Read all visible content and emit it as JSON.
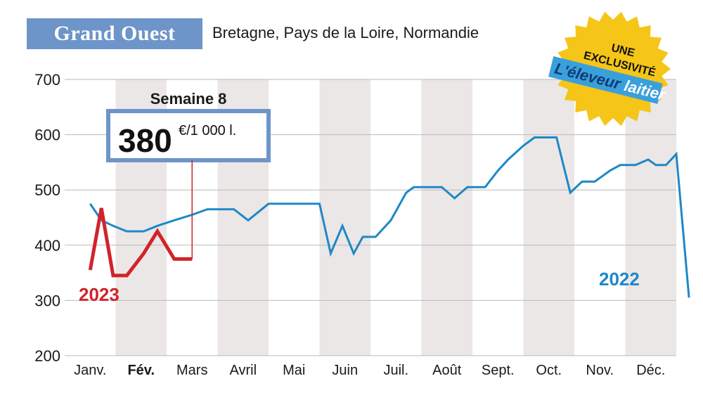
{
  "header": {
    "title": "Grand Ouest",
    "subtitle": "Bretagne, Pays de la Loire, Normandie"
  },
  "badge": {
    "line1": "UNE",
    "line2": "EXCLUSIVITÉ",
    "brand_part1": "L'éleveur",
    "brand_part2": "laitier",
    "color": "#f5c518"
  },
  "callout": {
    "week_label": "Semaine 8",
    "value": "380",
    "unit": "€/1 000 l."
  },
  "chart_data": {
    "type": "line",
    "categories": [
      "Janv.",
      "Fév.",
      "Mars",
      "Avril",
      "Mai",
      "Juin",
      "Juil.",
      "Août",
      "Sept.",
      "Oct.",
      "Nov.",
      "Déc."
    ],
    "highlighted_category": "Fév.",
    "yticks": [
      200,
      300,
      400,
      500,
      600,
      700
    ],
    "ylim": [
      200,
      700
    ],
    "grid": "horizontal",
    "series": [
      {
        "name": "2022",
        "color": "#1e88c7",
        "x": [
          1,
          1.22,
          1.45,
          1.72,
          2.05,
          2.32,
          2.65,
          3.0,
          3.3,
          3.52,
          3.82,
          4.1,
          4.5,
          4.85,
          5.12,
          5.3,
          5.5,
          5.72,
          5.95,
          6.17,
          6.35,
          6.6,
          6.9,
          7.2,
          7.35,
          7.6,
          7.9,
          8.15,
          8.4,
          8.75,
          9.0,
          9.2,
          9.5,
          9.72,
          9.95,
          10.15,
          10.42,
          10.65,
          10.9,
          11.2,
          11.4,
          11.7,
          11.95,
          12.1,
          12.3,
          12.5,
          12.75
        ],
        "values": [
          475,
          445,
          435,
          425,
          425,
          435,
          445,
          455,
          465,
          465,
          465,
          445,
          475,
          475,
          475,
          475,
          475,
          385,
          435,
          385,
          415,
          415,
          445,
          495,
          505,
          505,
          505,
          485,
          505,
          505,
          535,
          555,
          580,
          595,
          595,
          595,
          495,
          515,
          515,
          535,
          545,
          545,
          555,
          545,
          545,
          565,
          305
        ]
      },
      {
        "name": "2023",
        "color": "#d2232a",
        "x": [
          1,
          1.22,
          1.45,
          1.72,
          2.05,
          2.32,
          2.65,
          3.0
        ],
        "values": [
          355,
          467,
          345,
          345,
          385,
          425,
          375,
          375
        ]
      }
    ]
  }
}
